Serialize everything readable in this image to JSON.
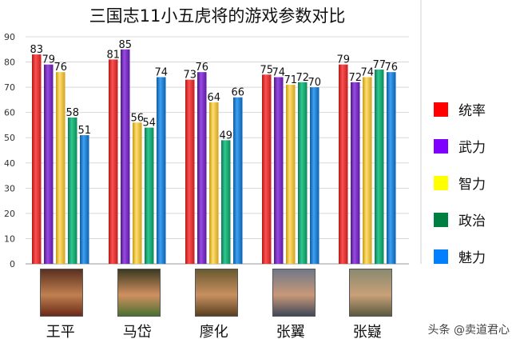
{
  "chart_data": {
    "type": "bar",
    "title": "三国志11小五虎将的游戏参数对比",
    "categories": [
      "王平",
      "马岱",
      "廖化",
      "张翼",
      "张嶷"
    ],
    "series": [
      {
        "name": "统率",
        "color": "#ff0000",
        "values": [
          83,
          81,
          73,
          75,
          79
        ]
      },
      {
        "name": "武力",
        "color": "#8000ff",
        "values": [
          79,
          85,
          76,
          74,
          72
        ]
      },
      {
        "name": "智力",
        "color": "#ffff00",
        "values": [
          76,
          56,
          64,
          71,
          74
        ]
      },
      {
        "name": "政治",
        "color": "#008040",
        "values": [
          58,
          54,
          49,
          72,
          77
        ]
      },
      {
        "name": "魅力",
        "color": "#0080ff",
        "values": [
          51,
          74,
          66,
          70,
          76
        ]
      }
    ],
    "ylim": [
      0,
      90
    ],
    "yticks": [
      0,
      10,
      20,
      30,
      40,
      50,
      60,
      70,
      80,
      90
    ],
    "grid": true,
    "legend_position": "right"
  },
  "watermark": "头条 @卖道君心",
  "portraits": [
    "portrait-wang-ping",
    "portrait-ma-dai",
    "portrait-liao-hua",
    "portrait-zhang-yi",
    "portrait-zhang-ni"
  ]
}
